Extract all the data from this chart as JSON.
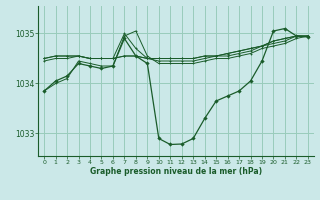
{
  "title": "Graphe pression niveau de la mer (hPa)",
  "background_color": "#cbe8e8",
  "grid_color": "#99ccbb",
  "line_color": "#1a5c2a",
  "xlim": [
    -0.5,
    23.5
  ],
  "ylim": [
    1032.55,
    1035.55
  ],
  "yticks": [
    1033,
    1034,
    1035
  ],
  "xticks": [
    0,
    1,
    2,
    3,
    4,
    5,
    6,
    7,
    8,
    9,
    10,
    11,
    12,
    13,
    14,
    15,
    16,
    17,
    18,
    19,
    20,
    21,
    22,
    23
  ],
  "series": [
    [
      1033.85,
      1034.0,
      1034.1,
      1034.45,
      1034.4,
      1034.35,
      1034.35,
      1034.95,
      1035.05,
      1034.55,
      1034.4,
      1034.4,
      1034.4,
      1034.4,
      1034.45,
      1034.5,
      1034.5,
      1034.55,
      1034.6,
      1034.7,
      1034.75,
      1034.8,
      1034.9,
      1034.95
    ],
    [
      1034.45,
      1034.5,
      1034.5,
      1034.55,
      1034.5,
      1034.5,
      1034.5,
      1035.0,
      1034.7,
      1034.5,
      1034.45,
      1034.45,
      1034.45,
      1034.45,
      1034.5,
      1034.55,
      1034.55,
      1034.6,
      1034.65,
      1034.75,
      1034.8,
      1034.85,
      1034.95,
      1034.95
    ],
    [
      1034.5,
      1034.55,
      1034.55,
      1034.55,
      1034.5,
      1034.5,
      1034.5,
      1034.55,
      1034.55,
      1034.5,
      1034.5,
      1034.5,
      1034.5,
      1034.5,
      1034.55,
      1034.55,
      1034.6,
      1034.65,
      1034.7,
      1034.75,
      1034.85,
      1034.9,
      1034.95,
      1034.95
    ],
    [
      1034.5,
      1034.55,
      1034.55,
      1034.55,
      1034.5,
      1034.5,
      1034.5,
      1034.55,
      1034.55,
      1034.5,
      1034.5,
      1034.5,
      1034.5,
      1034.5,
      1034.55,
      1034.55,
      1034.6,
      1034.65,
      1034.7,
      1034.75,
      1034.85,
      1034.9,
      1034.95,
      1034.95
    ],
    [
      1033.85,
      1034.05,
      1034.15,
      1034.4,
      1034.35,
      1034.3,
      1034.35,
      1034.9,
      1034.55,
      1034.4,
      1032.9,
      1032.78,
      1032.79,
      1032.9,
      1033.3,
      1033.65,
      1033.75,
      1033.85,
      1034.05,
      1034.45,
      1035.05,
      1035.1,
      1034.95,
      1034.93
    ]
  ]
}
